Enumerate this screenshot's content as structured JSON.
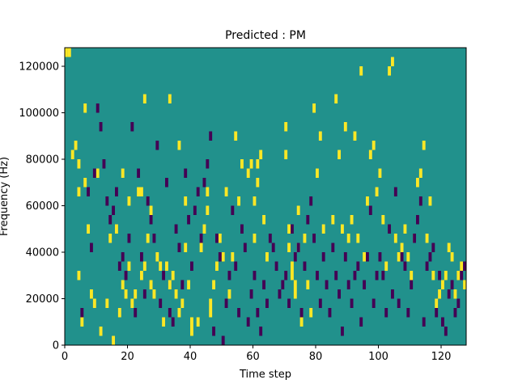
{
  "chart_data": {
    "type": "heatmap",
    "title": "Predicted : PM",
    "xlabel": "Time step",
    "ylabel": "Frequency (Hz)",
    "xlim": [
      0,
      128
    ],
    "ylim": [
      0,
      128000
    ],
    "x_ticks": [
      "0",
      "20",
      "40",
      "60",
      "80",
      "100",
      "120"
    ],
    "x_tick_values": [
      0,
      20,
      40,
      60,
      80,
      100,
      120
    ],
    "y_ticks": [
      "0",
      "20000",
      "40000",
      "60000",
      "80000",
      "100000",
      "120000"
    ],
    "y_tick_values": [
      0,
      20000,
      40000,
      60000,
      80000,
      100000,
      120000
    ],
    "colors": {
      "background": "#21918c",
      "high": "#fde725",
      "low": "#440154"
    },
    "notes": "Mostly mid-level teal (value 0); sparse cells +1 (yellow) and -1 (purple). Cell width 1 time step, cell height 4000 Hz.",
    "cell_height_hz": 4000,
    "high_cells": [
      [
        0,
        124000
      ],
      [
        1,
        124000
      ],
      [
        2,
        80000
      ],
      [
        3,
        84000
      ],
      [
        4,
        76000
      ],
      [
        4,
        64000
      ],
      [
        4,
        28000
      ],
      [
        5,
        8000
      ],
      [
        6,
        100000
      ],
      [
        6,
        68000
      ],
      [
        7,
        48000
      ],
      [
        8,
        20000
      ],
      [
        9,
        16000
      ],
      [
        10,
        72000
      ],
      [
        11,
        4000
      ],
      [
        13,
        16000
      ],
      [
        14,
        44000
      ],
      [
        15,
        0
      ],
      [
        16,
        48000
      ],
      [
        17,
        12000
      ],
      [
        18,
        72000
      ],
      [
        18,
        24000
      ],
      [
        19,
        20000
      ],
      [
        20,
        60000
      ],
      [
        20,
        32000
      ],
      [
        21,
        16000
      ],
      [
        22,
        20000
      ],
      [
        23,
        64000
      ],
      [
        24,
        64000
      ],
      [
        24,
        28000
      ],
      [
        25,
        104000
      ],
      [
        25,
        32000
      ],
      [
        26,
        44000
      ],
      [
        27,
        56000
      ],
      [
        27,
        24000
      ],
      [
        28,
        20000
      ],
      [
        29,
        36000
      ],
      [
        30,
        32000
      ],
      [
        31,
        8000
      ],
      [
        32,
        32000
      ],
      [
        33,
        104000
      ],
      [
        33,
        24000
      ],
      [
        34,
        28000
      ],
      [
        35,
        20000
      ],
      [
        36,
        84000
      ],
      [
        36,
        12000
      ],
      [
        37,
        16000
      ],
      [
        38,
        60000
      ],
      [
        38,
        40000
      ],
      [
        39,
        24000
      ],
      [
        40,
        8000
      ],
      [
        40,
        4000
      ],
      [
        42,
        8000
      ],
      [
        43,
        40000
      ],
      [
        44,
        48000
      ],
      [
        45,
        56000
      ],
      [
        45,
        64000
      ],
      [
        46,
        16000
      ],
      [
        46,
        12000
      ],
      [
        47,
        24000
      ],
      [
        48,
        32000
      ],
      [
        49,
        44000
      ],
      [
        50,
        36000
      ],
      [
        51,
        64000
      ],
      [
        52,
        20000
      ],
      [
        53,
        36000
      ],
      [
        54,
        88000
      ],
      [
        55,
        60000
      ],
      [
        56,
        76000
      ],
      [
        58,
        72000
      ],
      [
        59,
        76000
      ],
      [
        60,
        44000
      ],
      [
        60,
        60000
      ],
      [
        61,
        76000
      ],
      [
        61,
        68000
      ],
      [
        62,
        80000
      ],
      [
        63,
        52000
      ],
      [
        64,
        36000
      ],
      [
        70,
        92000
      ],
      [
        70,
        80000
      ],
      [
        71,
        40000
      ],
      [
        71,
        48000
      ],
      [
        72,
        32000
      ],
      [
        72,
        28000
      ],
      [
        73,
        24000
      ],
      [
        73,
        20000
      ],
      [
        74,
        56000
      ],
      [
        74,
        40000
      ],
      [
        75,
        8000
      ],
      [
        76,
        44000
      ],
      [
        77,
        24000
      ],
      [
        78,
        12000
      ],
      [
        79,
        100000
      ],
      [
        80,
        72000
      ],
      [
        81,
        88000
      ],
      [
        82,
        48000
      ],
      [
        85,
        52000
      ],
      [
        86,
        104000
      ],
      [
        87,
        80000
      ],
      [
        88,
        48000
      ],
      [
        89,
        92000
      ],
      [
        90,
        44000
      ],
      [
        91,
        52000
      ],
      [
        92,
        88000
      ],
      [
        93,
        44000
      ],
      [
        94,
        116000
      ],
      [
        95,
        36000
      ],
      [
        96,
        60000
      ],
      [
        97,
        80000
      ],
      [
        98,
        84000
      ],
      [
        99,
        64000
      ],
      [
        100,
        72000
      ],
      [
        101,
        52000
      ],
      [
        102,
        32000
      ],
      [
        103,
        116000
      ],
      [
        104,
        120000
      ],
      [
        105,
        44000
      ],
      [
        106,
        36000
      ],
      [
        107,
        40000
      ],
      [
        108,
        48000
      ],
      [
        109,
        36000
      ],
      [
        110,
        28000
      ],
      [
        111,
        44000
      ],
      [
        112,
        68000
      ],
      [
        113,
        72000
      ],
      [
        114,
        84000
      ],
      [
        115,
        44000
      ],
      [
        116,
        60000
      ],
      [
        117,
        28000
      ],
      [
        118,
        16000
      ],
      [
        119,
        20000
      ],
      [
        120,
        24000
      ],
      [
        121,
        28000
      ],
      [
        122,
        40000
      ],
      [
        123,
        36000
      ],
      [
        124,
        20000
      ],
      [
        125,
        28000
      ],
      [
        126,
        32000
      ],
      [
        127,
        24000
      ]
    ],
    "low_cells": [
      [
        5,
        12000
      ],
      [
        7,
        64000
      ],
      [
        8,
        40000
      ],
      [
        9,
        72000
      ],
      [
        10,
        100000
      ],
      [
        11,
        92000
      ],
      [
        12,
        76000
      ],
      [
        13,
        60000
      ],
      [
        14,
        52000
      ],
      [
        15,
        56000
      ],
      [
        16,
        64000
      ],
      [
        17,
        32000
      ],
      [
        18,
        36000
      ],
      [
        19,
        28000
      ],
      [
        20,
        44000
      ],
      [
        21,
        92000
      ],
      [
        22,
        12000
      ],
      [
        23,
        72000
      ],
      [
        24,
        36000
      ],
      [
        25,
        20000
      ],
      [
        26,
        60000
      ],
      [
        27,
        52000
      ],
      [
        28,
        44000
      ],
      [
        29,
        84000
      ],
      [
        30,
        16000
      ],
      [
        31,
        28000
      ],
      [
        32,
        68000
      ],
      [
        33,
        12000
      ],
      [
        34,
        8000
      ],
      [
        35,
        48000
      ],
      [
        36,
        40000
      ],
      [
        37,
        24000
      ],
      [
        38,
        72000
      ],
      [
        39,
        52000
      ],
      [
        40,
        32000
      ],
      [
        41,
        56000
      ],
      [
        42,
        64000
      ],
      [
        43,
        44000
      ],
      [
        44,
        68000
      ],
      [
        45,
        76000
      ],
      [
        46,
        88000
      ],
      [
        47,
        4000
      ],
      [
        48,
        44000
      ],
      [
        49,
        36000
      ],
      [
        50,
        0
      ],
      [
        51,
        16000
      ],
      [
        52,
        28000
      ],
      [
        53,
        56000
      ],
      [
        54,
        32000
      ],
      [
        55,
        12000
      ],
      [
        56,
        48000
      ],
      [
        57,
        40000
      ],
      [
        58,
        8000
      ],
      [
        59,
        20000
      ],
      [
        60,
        28000
      ],
      [
        61,
        12000
      ],
      [
        62,
        4000
      ],
      [
        63,
        24000
      ],
      [
        64,
        16000
      ],
      [
        65,
        44000
      ],
      [
        66,
        40000
      ],
      [
        67,
        32000
      ],
      [
        68,
        20000
      ],
      [
        69,
        24000
      ],
      [
        70,
        28000
      ],
      [
        71,
        16000
      ],
      [
        72,
        48000
      ],
      [
        73,
        36000
      ],
      [
        74,
        40000
      ],
      [
        75,
        12000
      ],
      [
        76,
        32000
      ],
      [
        77,
        52000
      ],
      [
        78,
        60000
      ],
      [
        79,
        44000
      ],
      [
        80,
        28000
      ],
      [
        81,
        16000
      ],
      [
        82,
        36000
      ],
      [
        83,
        24000
      ],
      [
        84,
        12000
      ],
      [
        85,
        40000
      ],
      [
        86,
        28000
      ],
      [
        87,
        20000
      ],
      [
        88,
        4000
      ],
      [
        89,
        36000
      ],
      [
        90,
        24000
      ],
      [
        91,
        16000
      ],
      [
        92,
        28000
      ],
      [
        93,
        32000
      ],
      [
        94,
        8000
      ],
      [
        95,
        24000
      ],
      [
        96,
        36000
      ],
      [
        97,
        56000
      ],
      [
        98,
        16000
      ],
      [
        99,
        28000
      ],
      [
        100,
        36000
      ],
      [
        101,
        28000
      ],
      [
        102,
        12000
      ],
      [
        103,
        48000
      ],
      [
        104,
        20000
      ],
      [
        105,
        64000
      ],
      [
        106,
        16000
      ],
      [
        107,
        36000
      ],
      [
        108,
        32000
      ],
      [
        109,
        12000
      ],
      [
        110,
        24000
      ],
      [
        111,
        44000
      ],
      [
        112,
        52000
      ],
      [
        113,
        60000
      ],
      [
        114,
        8000
      ],
      [
        115,
        32000
      ],
      [
        116,
        36000
      ],
      [
        117,
        40000
      ],
      [
        118,
        12000
      ],
      [
        119,
        28000
      ],
      [
        120,
        8000
      ],
      [
        121,
        4000
      ],
      [
        122,
        20000
      ],
      [
        123,
        24000
      ],
      [
        124,
        12000
      ],
      [
        125,
        16000
      ],
      [
        126,
        28000
      ],
      [
        127,
        32000
      ]
    ]
  }
}
